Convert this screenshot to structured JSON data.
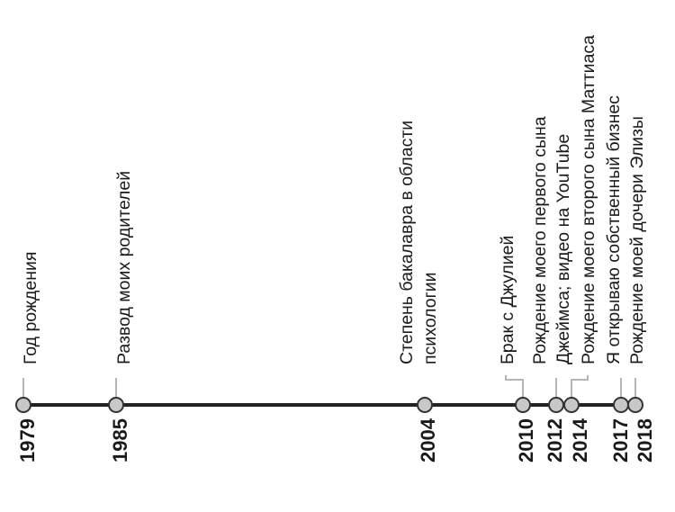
{
  "colors": {
    "axis": "#222222",
    "dot_fill": "#c8c8c8",
    "dot_stroke": "#333333",
    "leader": "#b5b5b5",
    "text": "#1a1a1a"
  },
  "events": [
    {
      "year": "1979",
      "lines": [
        "Год рождения"
      ]
    },
    {
      "year": "1985",
      "lines": [
        "Развод моих родителей"
      ]
    },
    {
      "year": "2004",
      "lines": [
        "Степень бакалавра в области",
        "психологии"
      ]
    },
    {
      "year": "2010",
      "lines": [
        "Брак с Джулией"
      ]
    },
    {
      "year": "2012",
      "lines": [
        "Рождение моего первого сына",
        "Джеймса; видео на YouTube"
      ]
    },
    {
      "year": "2014",
      "lines": [
        "Рождение моего второго сына Маттиаса"
      ]
    },
    {
      "year": "2017",
      "lines": [
        "Я открываю собственный бизнес"
      ]
    },
    {
      "year": "2018",
      "lines": [
        "Рождение моей дочери Элизы"
      ]
    }
  ]
}
